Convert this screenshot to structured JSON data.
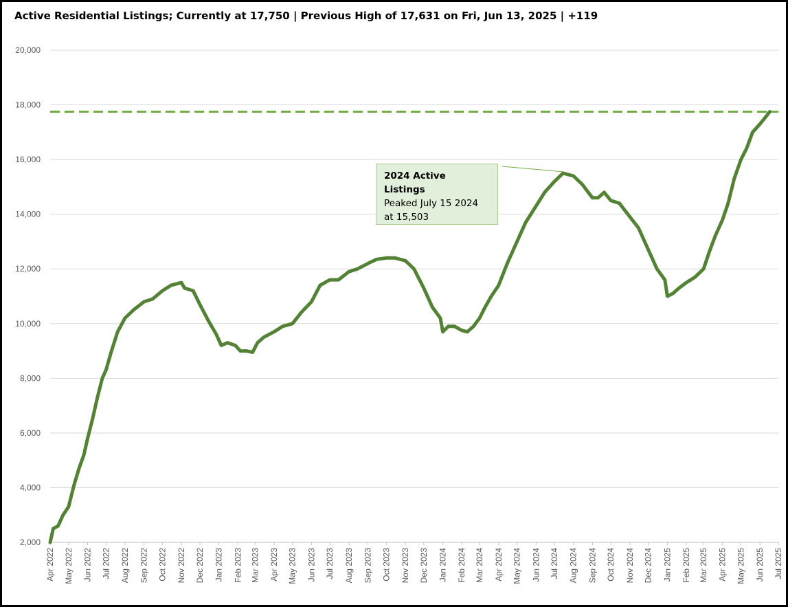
{
  "chart_data": {
    "type": "line",
    "title": "Active Residential Listings; Currently at 17,750 | Previous High of 17,631 on Fri, Jun 13, 2025 | +119",
    "xlabel": "",
    "ylabel": "",
    "ylim": [
      2000,
      20000
    ],
    "y_ticks": [
      "2,000",
      "4,000",
      "6,000",
      "8,000",
      "10,000",
      "12,000",
      "14,000",
      "16,000",
      "18,000",
      "20,000"
    ],
    "x_ticks": [
      "Apr 2022",
      "May 2022",
      "Jun 2022",
      "Jul 2022",
      "Aug 2022",
      "Sep 2022",
      "Oct 2022",
      "Nov 2022",
      "Dec 2022",
      "Jan 2023",
      "Feb 2023",
      "Mar 2023",
      "Apr 2023",
      "May 2023",
      "Jun 2023",
      "Jul 2023",
      "Aug 2023",
      "Sep 2023",
      "Oct 2023",
      "Nov 2023",
      "Dec 2023",
      "Jan 2024",
      "Feb 2024",
      "Mar 2024",
      "Apr 2024",
      "May 2024",
      "Jun 2024",
      "Jul 2024",
      "Aug 2024",
      "Sep 2024",
      "Oct 2024",
      "Nov 2024",
      "Dec 2024",
      "Jan 2025",
      "Feb 2025",
      "Mar 2025",
      "Apr 2025",
      "May 2025",
      "Jun 2025",
      "Jul 2025"
    ],
    "grid": true,
    "legend": "none",
    "colors": {
      "series": "#548235",
      "reference": "#70ad47",
      "grid": "#d9d9d9",
      "callout_fill": "#e2efda",
      "callout_border": "#a9d08e"
    },
    "series": [
      {
        "values": [
          {
            "x": "2022-04-01",
            "y": 2000
          },
          {
            "x": "2022-04-06",
            "y": 2500
          },
          {
            "x": "2022-04-14",
            "y": 2600
          },
          {
            "x": "2022-04-22",
            "y": 3000
          },
          {
            "x": "2022-05-01",
            "y": 3300
          },
          {
            "x": "2022-05-10",
            "y": 4100
          },
          {
            "x": "2022-05-18",
            "y": 4700
          },
          {
            "x": "2022-05-26",
            "y": 5200
          },
          {
            "x": "2022-06-01",
            "y": 5800
          },
          {
            "x": "2022-06-09",
            "y": 6500
          },
          {
            "x": "2022-06-17",
            "y": 7300
          },
          {
            "x": "2022-06-25",
            "y": 8000
          },
          {
            "x": "2022-07-01",
            "y": 8300
          },
          {
            "x": "2022-07-10",
            "y": 9000
          },
          {
            "x": "2022-07-20",
            "y": 9700
          },
          {
            "x": "2022-08-01",
            "y": 10200
          },
          {
            "x": "2022-08-15",
            "y": 10500
          },
          {
            "x": "2022-09-01",
            "y": 10800
          },
          {
            "x": "2022-09-15",
            "y": 10900
          },
          {
            "x": "2022-10-01",
            "y": 11200
          },
          {
            "x": "2022-10-15",
            "y": 11400
          },
          {
            "x": "2022-11-01",
            "y": 11500
          },
          {
            "x": "2022-11-06",
            "y": 11300
          },
          {
            "x": "2022-11-20",
            "y": 11200
          },
          {
            "x": "2022-12-01",
            "y": 10700
          },
          {
            "x": "2022-12-15",
            "y": 10100
          },
          {
            "x": "2022-12-28",
            "y": 9600
          },
          {
            "x": "2023-01-05",
            "y": 9200
          },
          {
            "x": "2023-01-15",
            "y": 9300
          },
          {
            "x": "2023-01-28",
            "y": 9200
          },
          {
            "x": "2023-02-05",
            "y": 9000
          },
          {
            "x": "2023-02-15",
            "y": 9000
          },
          {
            "x": "2023-02-25",
            "y": 8950
          },
          {
            "x": "2023-03-05",
            "y": 9300
          },
          {
            "x": "2023-03-15",
            "y": 9500
          },
          {
            "x": "2023-04-01",
            "y": 9700
          },
          {
            "x": "2023-04-15",
            "y": 9900
          },
          {
            "x": "2023-05-01",
            "y": 10000
          },
          {
            "x": "2023-05-15",
            "y": 10400
          },
          {
            "x": "2023-06-01",
            "y": 10800
          },
          {
            "x": "2023-06-15",
            "y": 11400
          },
          {
            "x": "2023-07-01",
            "y": 11600
          },
          {
            "x": "2023-07-15",
            "y": 11600
          },
          {
            "x": "2023-08-01",
            "y": 11900
          },
          {
            "x": "2023-08-15",
            "y": 12000
          },
          {
            "x": "2023-09-01",
            "y": 12200
          },
          {
            "x": "2023-09-15",
            "y": 12350
          },
          {
            "x": "2023-10-01",
            "y": 12400
          },
          {
            "x": "2023-10-15",
            "y": 12400
          },
          {
            "x": "2023-11-01",
            "y": 12300
          },
          {
            "x": "2023-11-15",
            "y": 12000
          },
          {
            "x": "2023-12-01",
            "y": 11300
          },
          {
            "x": "2023-12-15",
            "y": 10600
          },
          {
            "x": "2023-12-28",
            "y": 10200
          },
          {
            "x": "2024-01-01",
            "y": 9700
          },
          {
            "x": "2024-01-10",
            "y": 9900
          },
          {
            "x": "2024-01-20",
            "y": 9900
          },
          {
            "x": "2024-02-01",
            "y": 9750
          },
          {
            "x": "2024-02-10",
            "y": 9700
          },
          {
            "x": "2024-02-20",
            "y": 9900
          },
          {
            "x": "2024-03-01",
            "y": 10200
          },
          {
            "x": "2024-03-10",
            "y": 10600
          },
          {
            "x": "2024-03-20",
            "y": 11000
          },
          {
            "x": "2024-04-01",
            "y": 11400
          },
          {
            "x": "2024-04-15",
            "y": 12200
          },
          {
            "x": "2024-05-01",
            "y": 13000
          },
          {
            "x": "2024-05-15",
            "y": 13700
          },
          {
            "x": "2024-06-01",
            "y": 14300
          },
          {
            "x": "2024-06-15",
            "y": 14800
          },
          {
            "x": "2024-07-01",
            "y": 15200
          },
          {
            "x": "2024-07-15",
            "y": 15503
          },
          {
            "x": "2024-08-01",
            "y": 15400
          },
          {
            "x": "2024-08-15",
            "y": 15100
          },
          {
            "x": "2024-09-01",
            "y": 14600
          },
          {
            "x": "2024-09-10",
            "y": 14600
          },
          {
            "x": "2024-09-20",
            "y": 14800
          },
          {
            "x": "2024-10-01",
            "y": 14500
          },
          {
            "x": "2024-10-15",
            "y": 14400
          },
          {
            "x": "2024-11-01",
            "y": 13900
          },
          {
            "x": "2024-11-15",
            "y": 13500
          },
          {
            "x": "2024-12-01",
            "y": 12700
          },
          {
            "x": "2024-12-15",
            "y": 12000
          },
          {
            "x": "2024-12-28",
            "y": 11600
          },
          {
            "x": "2025-01-01",
            "y": 11000
          },
          {
            "x": "2025-01-10",
            "y": 11100
          },
          {
            "x": "2025-01-20",
            "y": 11300
          },
          {
            "x": "2025-02-01",
            "y": 11500
          },
          {
            "x": "2025-02-15",
            "y": 11700
          },
          {
            "x": "2025-03-01",
            "y": 12000
          },
          {
            "x": "2025-03-10",
            "y": 12600
          },
          {
            "x": "2025-03-20",
            "y": 13200
          },
          {
            "x": "2025-04-01",
            "y": 13800
          },
          {
            "x": "2025-04-10",
            "y": 14400
          },
          {
            "x": "2025-04-20",
            "y": 15300
          },
          {
            "x": "2025-05-01",
            "y": 16000
          },
          {
            "x": "2025-05-10",
            "y": 16400
          },
          {
            "x": "2025-05-20",
            "y": 17000
          },
          {
            "x": "2025-06-01",
            "y": 17300
          },
          {
            "x": "2025-06-13",
            "y": 17631
          },
          {
            "x": "2025-06-17",
            "y": 17750
          }
        ]
      }
    ],
    "reference_line": {
      "y": 17750,
      "style": "dashed"
    },
    "annotation": {
      "heading": "2024 Active Listings",
      "line1": "Peaked July 15 2024",
      "line2": "at 15,503",
      "points_to": {
        "x": "2024-07-15",
        "y": 15503
      }
    }
  }
}
